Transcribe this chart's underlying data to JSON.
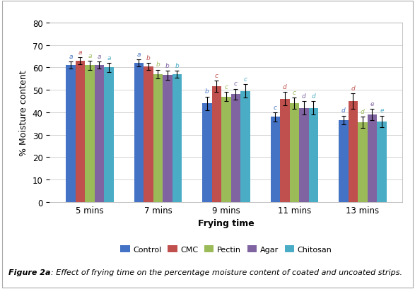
{
  "title": "",
  "xlabel": "Frying time",
  "ylabel": "% Moisture content",
  "ylim": [
    0,
    80
  ],
  "yticks": [
    0,
    10,
    20,
    30,
    40,
    50,
    60,
    70,
    80
  ],
  "categories": [
    "5 mins",
    "7 mins",
    "9 mins",
    "11 mins",
    "13 mins"
  ],
  "series_names": [
    "Control",
    "CMC",
    "Pectin",
    "Agar",
    "Chitosan"
  ],
  "series_colors": [
    "#4472C4",
    "#C0504D",
    "#9BBB59",
    "#8064A2",
    "#4BACC6"
  ],
  "bar_values": [
    [
      61.0,
      62.0,
      44.0,
      38.0,
      36.5
    ],
    [
      63.0,
      60.5,
      51.5,
      46.0,
      45.0
    ],
    [
      61.0,
      57.0,
      47.0,
      44.0,
      35.5
    ],
    [
      61.0,
      56.5,
      48.0,
      42.0,
      39.0
    ],
    [
      60.0,
      57.0,
      49.5,
      42.0,
      36.0
    ]
  ],
  "error_values": [
    [
      1.5,
      1.5,
      3.0,
      2.0,
      2.0
    ],
    [
      1.5,
      1.5,
      2.5,
      3.0,
      3.5
    ],
    [
      2.0,
      2.0,
      2.0,
      2.5,
      2.5
    ],
    [
      1.5,
      2.0,
      2.5,
      3.0,
      2.5
    ],
    [
      2.0,
      1.5,
      3.0,
      3.0,
      2.5
    ]
  ],
  "sig_labels": [
    [
      "a",
      "a",
      "b",
      "c",
      "d"
    ],
    [
      "a",
      "b",
      "c",
      "d",
      "d"
    ],
    [
      "a",
      "b",
      "c",
      "c",
      "d"
    ],
    [
      "a",
      "b",
      "c",
      "d",
      "e"
    ],
    [
      "a",
      "b",
      "c",
      "d",
      "e"
    ]
  ],
  "sig_colors": [
    "#4472C4",
    "#C0504D",
    "#9BBB59",
    "#8064A2",
    "#4BACC6"
  ],
  "caption_bold": "Figure 2a",
  "caption_regular": ": Effect of frying time on the percentage moisture content of coated and uncoated strips.",
  "figsize": [
    5.87,
    4.1
  ],
  "dpi": 100,
  "bar_width": 0.14
}
